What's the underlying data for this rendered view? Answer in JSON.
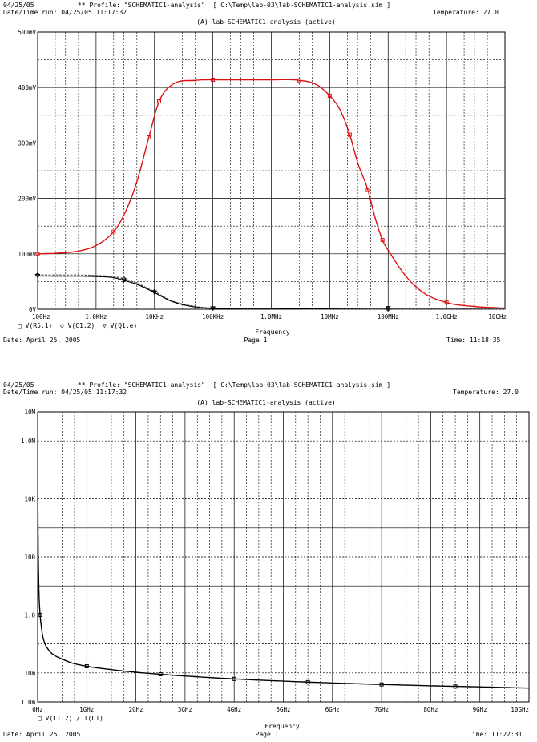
{
  "pages": [
    {
      "date": "04/25/05",
      "profile": "** Profile: \"SCHEMATIC1-analysis\"  [ C:\\Temp\\lab-03\\lab-SCHEMATIC1-analysis.sim ]",
      "run": "Date/Time run: 04/25/05 11:17:32",
      "temperature": "Temperature: 27.0",
      "section": "(A) lab-SCHEMATIC1-analysis (active)",
      "legend": "□ V(R5:1)  ◇ V(C1:2)  ▽ V(Q1:e)",
      "footer_date": "Date: April 25, 2005",
      "footer_page": "Page 1",
      "footer_time": "Time: 11:18:35"
    },
    {
      "date": "04/25/05",
      "profile": "** Profile: \"SCHEMATIC1-analysis\"  [ C:\\Temp\\lab-03\\lab-SCHEMATIC1-analysis.sim ]",
      "run": "Date/Time run: 04/25/05 11:17:32",
      "temperature": "Temperature: 27.0",
      "section": "(A) lab-SCHEMATIC1-analysis (active)",
      "legend": "□ V(C1:2) / I(C1)",
      "footer_date": "Date: April 25, 2005",
      "footer_page": "Page 1",
      "footer_time": "Time: 11:22:31"
    }
  ],
  "chart_data": [
    {
      "type": "line",
      "x_scale": "log",
      "xlabel": "Frequency",
      "ylabel": "",
      "xlim": [
        100,
        10000000000
      ],
      "ylim": [
        0,
        500
      ],
      "y_unit": "mV",
      "grid": true,
      "x_ticks": [
        "100Hz",
        "1.0KHz",
        "10KHz",
        "100KHz",
        "1.0MHz",
        "10MHz",
        "100MHz",
        "1.0GHz",
        "10GHz"
      ],
      "y_ticks": [
        "0V",
        "100mV",
        "200mV",
        "300mV",
        "400mV",
        "500mV"
      ],
      "series": [
        {
          "name": "V(R5:1)",
          "color": "#dd1111",
          "marker": "square",
          "x": [
            100,
            200,
            500,
            1000,
            2000,
            3000,
            5000,
            8000,
            12000,
            20000,
            50000,
            100000,
            1000000,
            3000000,
            6000000,
            10000000,
            15000000,
            22000000,
            30000000,
            45000000,
            60000000,
            80000000,
            110000000,
            200000000,
            400000000,
            1000000000,
            3000000000,
            10000000000
          ],
          "y": [
            100,
            101,
            105,
            115,
            140,
            170,
            230,
            310,
            375,
            405,
            413,
            414,
            414,
            413,
            405,
            385,
            360,
            315,
            265,
            215,
            165,
            125,
            100,
            60,
            30,
            12,
            5,
            2
          ]
        },
        {
          "name": "V(C1:2)",
          "color": "#555555",
          "marker": "diamond",
          "x": [
            100,
            1000,
            2000,
            3000,
            5000,
            10000,
            20000,
            50000,
            100000,
            1000000,
            100000000,
            10000000000
          ],
          "y": [
            62,
            61,
            59,
            55,
            47,
            32,
            15,
            5,
            2,
            0.5,
            0.3,
            0.2
          ]
        },
        {
          "name": "V(Q1:e)",
          "color": "#000000",
          "marker": "triangle",
          "x": [
            100,
            1000,
            2000,
            3000,
            5000,
            10000,
            20000,
            50000,
            100000,
            1000000,
            100000000,
            10000000000
          ],
          "y": [
            60,
            59,
            57,
            52,
            45,
            30,
            14,
            4,
            1.5,
            0.5,
            2,
            2
          ]
        }
      ]
    },
    {
      "type": "line",
      "y_scale": "log",
      "xlabel": "Frequency",
      "ylabel": "",
      "xlim": [
        0,
        10
      ],
      "x_unit": "GHz",
      "ylim": [
        0.001,
        10000000
      ],
      "grid": true,
      "x_ticks": [
        "0Hz",
        "1GHz",
        "2GHz",
        "3GHz",
        "4GHz",
        "5GHz",
        "6GHz",
        "7GHz",
        "8GHz",
        "9GHz",
        "10GHz"
      ],
      "y_ticks": [
        "1.0m",
        "10m",
        "1.0",
        "100",
        "10K",
        "1.0M",
        "10M"
      ],
      "series": [
        {
          "name": "V(C1:2) / I(C1)",
          "color": "#000000",
          "marker": "square",
          "x": [
            0.005,
            0.01,
            0.02,
            0.03,
            0.05,
            0.08,
            0.1,
            0.15,
            0.2,
            0.3,
            0.5,
            0.7,
            1,
            1.5,
            2,
            3,
            4,
            5,
            6,
            7,
            8,
            9,
            10
          ],
          "y": [
            5000,
            300,
            20,
            4,
            1,
            0.35,
            0.2,
            0.1,
            0.07,
            0.045,
            0.03,
            0.022,
            0.017,
            0.013,
            0.0105,
            0.0078,
            0.0062,
            0.0052,
            0.0045,
            0.004,
            0.0036,
            0.0033,
            0.003
          ]
        }
      ]
    }
  ]
}
